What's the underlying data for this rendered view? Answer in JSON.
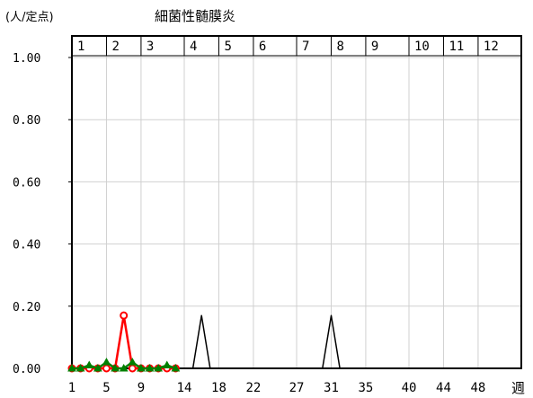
{
  "chart_data": {
    "type": "line",
    "title": "細菌性髄膜炎",
    "ylabel": "(人/定点)",
    "xlabel": "週",
    "ylim": [
      0,
      1.0
    ],
    "xlim": [
      1,
      53
    ],
    "y_ticks": [
      "0.00",
      "0.20",
      "0.40",
      "0.60",
      "0.80",
      "1.00"
    ],
    "y_tick_values": [
      0,
      0.2,
      0.4,
      0.6,
      0.8,
      1.0
    ],
    "x_tick_labels": [
      "1",
      "5",
      "9",
      "14",
      "18",
      "22",
      "27",
      "31",
      "35",
      "40",
      "44",
      "48"
    ],
    "x_tick_values": [
      1,
      5,
      9,
      14,
      18,
      22,
      27,
      31,
      35,
      40,
      44,
      48
    ],
    "months": [
      "1",
      "2",
      "3",
      "4",
      "5",
      "6",
      "7",
      "8",
      "9",
      "10",
      "11",
      "12"
    ],
    "month_start_weeks": [
      1,
      5,
      9,
      14,
      18,
      22,
      27,
      31,
      35,
      40,
      44,
      48
    ],
    "grid": true,
    "series": [
      {
        "color": "#000000",
        "marker": "none",
        "x": [
          1,
          2,
          3,
          4,
          5,
          6,
          7,
          8,
          9,
          10,
          11,
          12,
          13,
          14,
          15,
          16,
          17,
          18,
          19,
          20,
          21,
          22,
          23,
          24,
          25,
          26,
          27,
          28,
          29,
          30,
          31,
          32,
          33,
          34,
          35,
          36,
          37,
          38,
          39,
          40,
          41,
          42,
          43,
          44,
          45,
          46,
          47,
          48,
          49,
          50,
          51,
          52,
          53
        ],
        "values": [
          0,
          0,
          0,
          0,
          0,
          0,
          0,
          0,
          0,
          0,
          0,
          0,
          0,
          0,
          0,
          0.17,
          0,
          0,
          0,
          0,
          0,
          0,
          0,
          0,
          0,
          0,
          0,
          0,
          0,
          0,
          0.17,
          0,
          0,
          0,
          0,
          0,
          0,
          0,
          0,
          0,
          0,
          0,
          0,
          0,
          0,
          0,
          0,
          0,
          0,
          0,
          0,
          0,
          0
        ]
      },
      {
        "color": "#ff0000",
        "marker": "circle",
        "x": [
          1,
          2,
          3,
          4,
          5,
          6,
          7,
          8,
          9,
          10,
          11,
          12,
          13
        ],
        "values": [
          0,
          0,
          0,
          0,
          0,
          0,
          0.17,
          0,
          0,
          0,
          0,
          0,
          0
        ]
      },
      {
        "color": "#008000",
        "marker": "triangle",
        "x": [
          1,
          2,
          3,
          4,
          5,
          6,
          7,
          8,
          9,
          10,
          11,
          12,
          13
        ],
        "values": [
          0,
          0,
          0.01,
          0,
          0.02,
          0,
          0,
          0.02,
          0,
          0,
          0,
          0.01,
          0
        ]
      }
    ]
  }
}
